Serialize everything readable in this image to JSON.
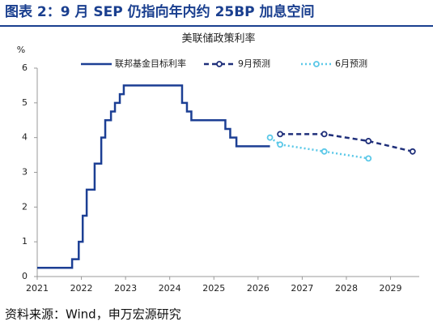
{
  "header": {
    "title": "图表 2：9 月 SEP 仍指向年内约 25BP 加息空间"
  },
  "chart_data": {
    "type": "line",
    "title": "美联储政策利率",
    "y_label": "%",
    "xlim": [
      2021,
      2029.65
    ],
    "xticks": [
      2021,
      2022,
      2023,
      2024,
      2025,
      2026,
      2027,
      2028,
      2029
    ],
    "ylim": [
      0,
      6
    ],
    "yticks": [
      0,
      1,
      2,
      3,
      4,
      5,
      6
    ],
    "grid": false,
    "legend": "top",
    "series": [
      {
        "name": "联邦基金目标利率",
        "color": "#1c3f94",
        "style": "step",
        "x": [
          2021,
          2021.79,
          2021.94,
          2022.03,
          2022.12,
          2022.3,
          2022.45,
          2022.54,
          2022.67,
          2022.76,
          2022.87,
          2022.96,
          2024.28,
          2024.39,
          2024.49,
          2025.26,
          2025.37,
          2025.51,
          2026.27
        ],
        "values": [
          0.25,
          0.5,
          1,
          1.75,
          2.5,
          3.25,
          4,
          4.5,
          4.75,
          5,
          5.25,
          5.5,
          5,
          4.75,
          4.5,
          4.25,
          4,
          3.75,
          3.75
        ]
      },
      {
        "name": "9月预测",
        "color": "#1f2f7a",
        "style": "dashed",
        "x": [
          2026.5,
          2027.5,
          2028.5,
          2029.5
        ],
        "values": [
          4.1,
          4.1,
          3.9,
          3.6
        ]
      },
      {
        "name": "6月预测",
        "color": "#5bc8e8",
        "style": "dotted",
        "x": [
          2026.27,
          2026.5,
          2027.5,
          2028.5
        ],
        "values": [
          4.0,
          3.8,
          3.6,
          3.4
        ]
      }
    ]
  },
  "footer": {
    "source": "资料来源：Wind，申万宏源研究"
  }
}
